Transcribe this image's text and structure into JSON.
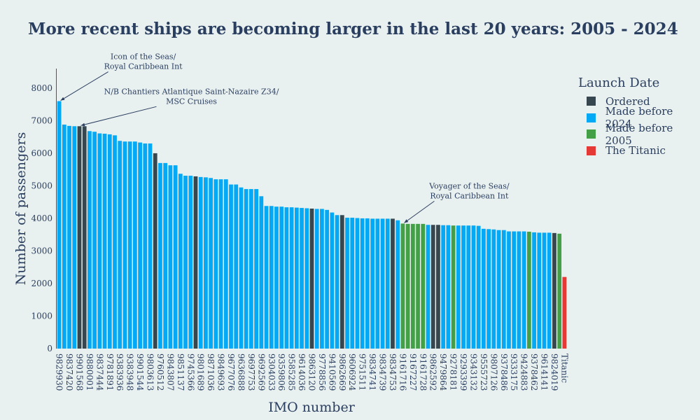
{
  "chart_data": {
    "type": "bar",
    "title": "More recent ships are becoming larger in the last 20 years: 2005 - 2024",
    "xlabel": "IMO number",
    "ylabel": "Number of passengers",
    "ylim": [
      0,
      8600
    ],
    "yticks": [
      0,
      1000,
      2000,
      3000,
      4000,
      5000,
      6000,
      7000,
      8000
    ],
    "grid": false,
    "legend_position": "right",
    "legend": {
      "title": "Launch Date",
      "entries": [
        {
          "key": "ordered",
          "label": "Ordered",
          "color": "#37474f"
        },
        {
          "key": "made_before_2024",
          "label": "Made before 2024",
          "color": "#03a9f4"
        },
        {
          "key": "made_before_2005",
          "label": "Made before 2005",
          "color": "#43a047"
        },
        {
          "key": "titanic",
          "label": "The Titanic",
          "color": "#e53935"
        }
      ]
    },
    "labeled_ticks": [
      "9829930",
      "9837420",
      "9901568",
      "9880001",
      "9837444",
      "9781891",
      "9383936",
      "9383948",
      "9901544",
      "9803613",
      "9760512",
      "9843807",
      "9851137",
      "9745366",
      "9801689",
      "9871036",
      "9849693",
      "9677076",
      "9636888",
      "9697753",
      "9692569",
      "9304033",
      "9359806",
      "9585285",
      "9614036",
      "9863120",
      "9778856",
      "9410569",
      "9862669",
      "9606924",
      "9751511",
      "9834741",
      "9834739",
      "9834753",
      "9161716",
      "9167227",
      "9161728",
      "9862592",
      "9479864",
      "9278181",
      "9293399",
      "9343132",
      "9555723",
      "9807126",
      "9378486",
      "9333175",
      "9424883",
      "9378462",
      "9614141",
      "9824019",
      "Titanic"
    ],
    "bars": [
      {
        "x": "9829930",
        "value": 7600,
        "group": "made_before_2024"
      },
      {
        "x": "",
        "value": 6880,
        "group": "made_before_2024"
      },
      {
        "x": "9837420",
        "value": 6840,
        "group": "made_before_2024"
      },
      {
        "x": "",
        "value": 6830,
        "group": "made_before_2024"
      },
      {
        "x": "9901568",
        "value": 6830,
        "group": "ordered"
      },
      {
        "x": "",
        "value": 6830,
        "group": "ordered"
      },
      {
        "x": "9880001",
        "value": 6680,
        "group": "made_before_2024"
      },
      {
        "x": "",
        "value": 6660,
        "group": "made_before_2024"
      },
      {
        "x": "9837444",
        "value": 6610,
        "group": "made_before_2024"
      },
      {
        "x": "",
        "value": 6600,
        "group": "made_before_2024"
      },
      {
        "x": "9781891",
        "value": 6580,
        "group": "made_before_2024"
      },
      {
        "x": "",
        "value": 6550,
        "group": "made_before_2024"
      },
      {
        "x": "9383936",
        "value": 6380,
        "group": "made_before_2024"
      },
      {
        "x": "",
        "value": 6360,
        "group": "made_before_2024"
      },
      {
        "x": "9383948",
        "value": 6360,
        "group": "made_before_2024"
      },
      {
        "x": "",
        "value": 6360,
        "group": "made_before_2024"
      },
      {
        "x": "9901544",
        "value": 6330,
        "group": "made_before_2024"
      },
      {
        "x": "",
        "value": 6300,
        "group": "made_before_2024"
      },
      {
        "x": "9803613",
        "value": 6300,
        "group": "made_before_2024"
      },
      {
        "x": "",
        "value": 6000,
        "group": "ordered"
      },
      {
        "x": "9760512",
        "value": 5700,
        "group": "made_before_2024"
      },
      {
        "x": "",
        "value": 5700,
        "group": "made_before_2024"
      },
      {
        "x": "9843807",
        "value": 5630,
        "group": "made_before_2024"
      },
      {
        "x": "",
        "value": 5630,
        "group": "made_before_2024"
      },
      {
        "x": "9851137",
        "value": 5370,
        "group": "made_before_2024"
      },
      {
        "x": "",
        "value": 5310,
        "group": "made_before_2024"
      },
      {
        "x": "9745366",
        "value": 5310,
        "group": "made_before_2024"
      },
      {
        "x": "",
        "value": 5290,
        "group": "ordered"
      },
      {
        "x": "9801689",
        "value": 5270,
        "group": "made_before_2024"
      },
      {
        "x": "",
        "value": 5260,
        "group": "made_before_2024"
      },
      {
        "x": "9871036",
        "value": 5240,
        "group": "made_before_2024"
      },
      {
        "x": "",
        "value": 5200,
        "group": "made_before_2024"
      },
      {
        "x": "9849693",
        "value": 5200,
        "group": "made_before_2024"
      },
      {
        "x": "",
        "value": 5200,
        "group": "made_before_2024"
      },
      {
        "x": "9677076",
        "value": 5040,
        "group": "made_before_2024"
      },
      {
        "x": "",
        "value": 5040,
        "group": "made_before_2024"
      },
      {
        "x": "9636888",
        "value": 4950,
        "group": "made_before_2024"
      },
      {
        "x": "",
        "value": 4900,
        "group": "made_before_2024"
      },
      {
        "x": "9697753",
        "value": 4900,
        "group": "made_before_2024"
      },
      {
        "x": "",
        "value": 4900,
        "group": "made_before_2024"
      },
      {
        "x": "9692569",
        "value": 4680,
        "group": "made_before_2024"
      },
      {
        "x": "",
        "value": 4380,
        "group": "made_before_2024"
      },
      {
        "x": "9304033",
        "value": 4380,
        "group": "made_before_2024"
      },
      {
        "x": "",
        "value": 4360,
        "group": "made_before_2024"
      },
      {
        "x": "9359806",
        "value": 4360,
        "group": "made_before_2024"
      },
      {
        "x": "",
        "value": 4340,
        "group": "made_before_2024"
      },
      {
        "x": "9585285",
        "value": 4340,
        "group": "made_before_2024"
      },
      {
        "x": "",
        "value": 4330,
        "group": "made_before_2024"
      },
      {
        "x": "9614036",
        "value": 4320,
        "group": "made_before_2024"
      },
      {
        "x": "",
        "value": 4310,
        "group": "made_before_2024"
      },
      {
        "x": "9863120",
        "value": 4300,
        "group": "ordered"
      },
      {
        "x": "",
        "value": 4290,
        "group": "made_before_2024"
      },
      {
        "x": "9778856",
        "value": 4290,
        "group": "made_before_2024"
      },
      {
        "x": "",
        "value": 4260,
        "group": "made_before_2024"
      },
      {
        "x": "9410569",
        "value": 4180,
        "group": "made_before_2024"
      },
      {
        "x": "",
        "value": 4100,
        "group": "made_before_2024"
      },
      {
        "x": "9862669",
        "value": 4100,
        "group": "ordered"
      },
      {
        "x": "",
        "value": 4020,
        "group": "made_before_2024"
      },
      {
        "x": "9606924",
        "value": 4020,
        "group": "made_before_2024"
      },
      {
        "x": "",
        "value": 4010,
        "group": "made_before_2024"
      },
      {
        "x": "9751511",
        "value": 4000,
        "group": "made_before_2024"
      },
      {
        "x": "",
        "value": 4000,
        "group": "made_before_2024"
      },
      {
        "x": "9834741",
        "value": 3990,
        "group": "made_before_2024"
      },
      {
        "x": "",
        "value": 3990,
        "group": "made_before_2024"
      },
      {
        "x": "9834739",
        "value": 3990,
        "group": "made_before_2024"
      },
      {
        "x": "",
        "value": 3990,
        "group": "made_before_2024"
      },
      {
        "x": "9834753",
        "value": 3990,
        "group": "ordered"
      },
      {
        "x": "",
        "value": 3940,
        "group": "made_before_2024"
      },
      {
        "x": "9161716",
        "value": 3840,
        "group": "made_before_2005"
      },
      {
        "x": "",
        "value": 3830,
        "group": "made_before_2005"
      },
      {
        "x": "9167227",
        "value": 3830,
        "group": "made_before_2005"
      },
      {
        "x": "",
        "value": 3830,
        "group": "made_before_2005"
      },
      {
        "x": "9161728",
        "value": 3830,
        "group": "made_before_2005"
      },
      {
        "x": "",
        "value": 3800,
        "group": "made_before_2024"
      },
      {
        "x": "9862592",
        "value": 3800,
        "group": "ordered"
      },
      {
        "x": "",
        "value": 3800,
        "group": "ordered"
      },
      {
        "x": "9479864",
        "value": 3790,
        "group": "made_before_2024"
      },
      {
        "x": "",
        "value": 3790,
        "group": "made_before_2024"
      },
      {
        "x": "9278181",
        "value": 3780,
        "group": "made_before_2005"
      },
      {
        "x": "",
        "value": 3780,
        "group": "made_before_2024"
      },
      {
        "x": "9293399",
        "value": 3780,
        "group": "made_before_2024"
      },
      {
        "x": "",
        "value": 3780,
        "group": "made_before_2024"
      },
      {
        "x": "9343132",
        "value": 3780,
        "group": "made_before_2024"
      },
      {
        "x": "",
        "value": 3770,
        "group": "made_before_2024"
      },
      {
        "x": "9555723",
        "value": 3680,
        "group": "made_before_2024"
      },
      {
        "x": "",
        "value": 3670,
        "group": "made_before_2024"
      },
      {
        "x": "9807126",
        "value": 3660,
        "group": "made_before_2024"
      },
      {
        "x": "",
        "value": 3640,
        "group": "made_before_2024"
      },
      {
        "x": "9378486",
        "value": 3640,
        "group": "made_before_2024"
      },
      {
        "x": "",
        "value": 3600,
        "group": "made_before_2024"
      },
      {
        "x": "9333175",
        "value": 3600,
        "group": "made_before_2024"
      },
      {
        "x": "",
        "value": 3600,
        "group": "made_before_2024"
      },
      {
        "x": "9424883",
        "value": 3600,
        "group": "made_before_2024"
      },
      {
        "x": "",
        "value": 3590,
        "group": "made_before_2005"
      },
      {
        "x": "9378462",
        "value": 3570,
        "group": "made_before_2024"
      },
      {
        "x": "",
        "value": 3560,
        "group": "made_before_2024"
      },
      {
        "x": "9614141",
        "value": 3560,
        "group": "made_before_2024"
      },
      {
        "x": "",
        "value": 3560,
        "group": "made_before_2024"
      },
      {
        "x": "9824019",
        "value": 3550,
        "group": "ordered"
      },
      {
        "x": "",
        "value": 3530,
        "group": "made_before_2005"
      },
      {
        "x": "Titanic",
        "value": 2200,
        "group": "titanic"
      }
    ],
    "annotations": [
      {
        "lines": [
          "Icon of the Seas/",
          "Royal Caribbean Int"
        ],
        "target": "9829930"
      },
      {
        "lines": [
          "N/B Chantiers Atlantique Saint-Nazaire Z34/",
          "MSC Cruises"
        ],
        "target": "9901568"
      },
      {
        "lines": [
          "Voyager of the Seas/",
          "Royal Caribbean Int"
        ],
        "target": "9161716"
      }
    ]
  }
}
